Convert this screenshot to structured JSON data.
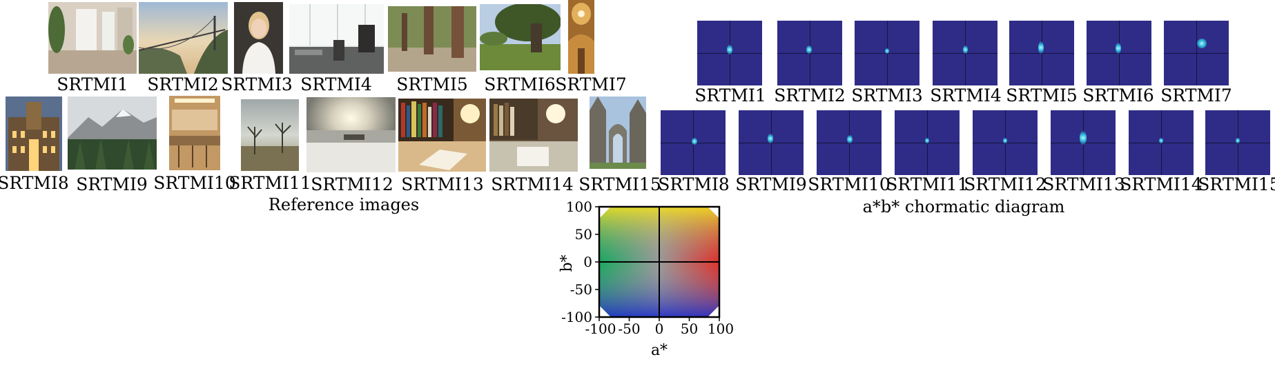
{
  "reference_panel": {
    "caption": "Reference images",
    "images": [
      {
        "label": "SRTMI1",
        "depicts": "Bright hallway with large windows and plants"
      },
      {
        "label": "SRTMI2",
        "depicts": "Suspension bridge over a valley at sunset"
      },
      {
        "label": "SRTMI3",
        "depicts": "Portrait of a blonde woman in a white top"
      },
      {
        "label": "SRTMI4",
        "depicts": "Office with a person at a desk and bright windows"
      },
      {
        "label": "SRTMI5",
        "depicts": "Forest path with tall redwood trunks"
      },
      {
        "label": "SRTMI6",
        "depicts": "Large oak tree on a green meadow"
      },
      {
        "label": "SRTMI7",
        "depicts": "Ornate golden church dome interior"
      },
      {
        "label": "SRTMI8",
        "depicts": "Illuminated historic building at dusk"
      },
      {
        "label": "SRTMI9",
        "depicts": "Snowy mountains above a pine forest"
      },
      {
        "label": "SRTMI10",
        "depicts": "Kitchen interior with bar stools"
      },
      {
        "label": "SRTMI11",
        "depicts": "Bare trees in a field under an overcast sky"
      },
      {
        "label": "SRTMI12",
        "depicts": "Snowy shore with the sun over water"
      },
      {
        "label": "SRTMI13",
        "depicts": "Desk with an open book, bookshelf and lamp"
      },
      {
        "label": "SRTMI14",
        "depicts": "Desk with lamp, papers and shelves"
      },
      {
        "label": "SRTMI15",
        "depicts": "Gothic abbey ruins under a blue sky"
      }
    ]
  },
  "chromatic_panel": {
    "caption": "a*b* chormatic diagram",
    "items": [
      {
        "label": "SRTMI1"
      },
      {
        "label": "SRTMI2"
      },
      {
        "label": "SRTMI3"
      },
      {
        "label": "SRTMI4"
      },
      {
        "label": "SRTMI5"
      },
      {
        "label": "SRTMI6"
      },
      {
        "label": "SRTMI7"
      },
      {
        "label": "SRTMI8"
      },
      {
        "label": "SRTMI9"
      },
      {
        "label": "SRTMI10"
      },
      {
        "label": "SRTMI11"
      },
      {
        "label": "SRTMI12"
      },
      {
        "label": "SRTMI13"
      },
      {
        "label": "SRTMI14"
      },
      {
        "label": "SRTMI15"
      }
    ],
    "background_color": "#2f2c88",
    "spot_color": "#2fb4d8"
  },
  "ab_plane": {
    "xlabel": "a*",
    "ylabel": "b*",
    "xticks": [
      "-100",
      "-50",
      "0",
      "50",
      "100"
    ],
    "yticks": [
      "100",
      "50",
      "0",
      "-50",
      "-100"
    ],
    "range": [
      -100,
      100
    ]
  }
}
